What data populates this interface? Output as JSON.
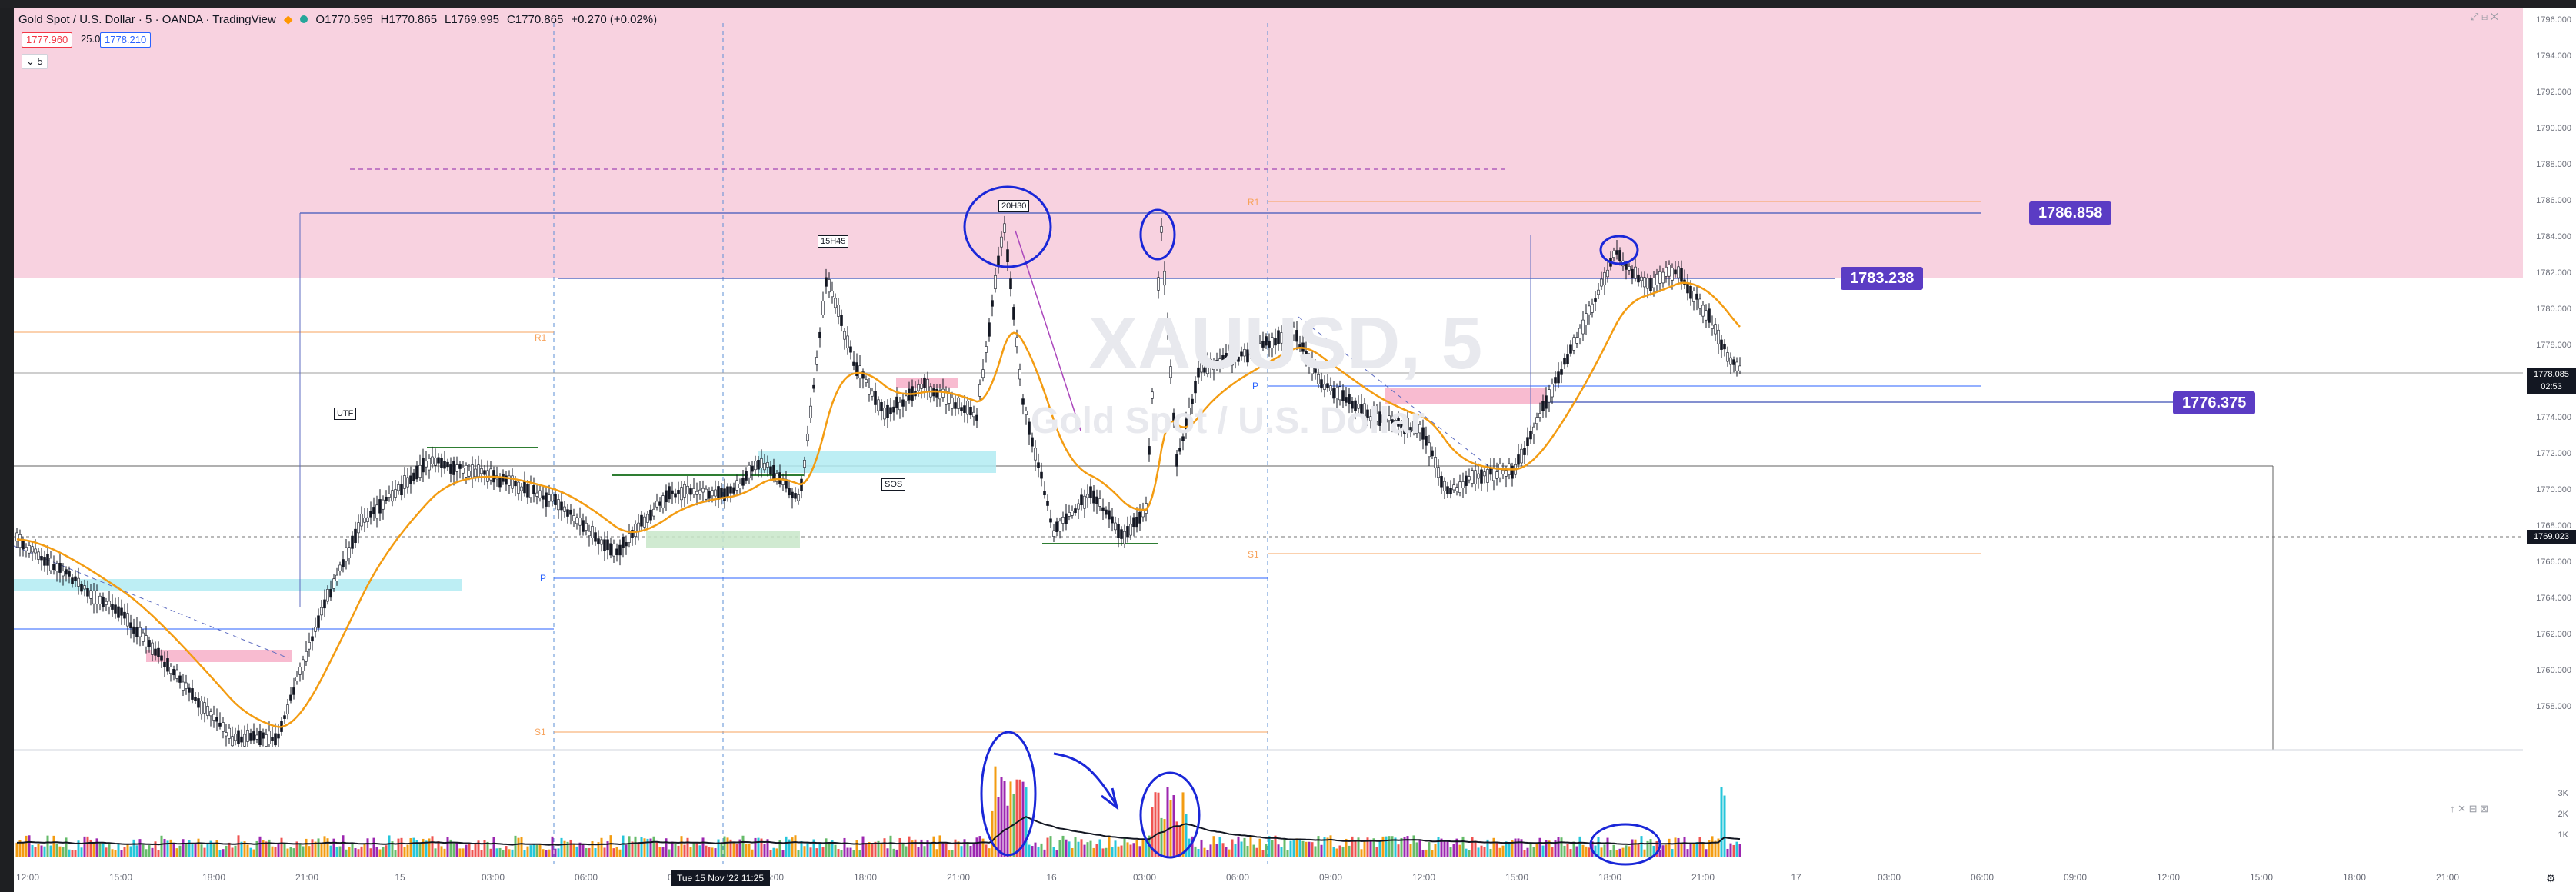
{
  "header": {
    "symbol": "Gold Spot / U.S. Dollar · 5 · OANDA · TradingView",
    "open": "O1770.595",
    "high": "H1770.865",
    "low": "L1769.995",
    "close": "C1770.865",
    "change": "+0.270 (+0.02%)"
  },
  "quote": {
    "bid": "1777.960",
    "spread": "25.0",
    "ask": "1778.210",
    "indicator_toggle": "5"
  },
  "watermark": {
    "ticker": "XAUUSD, 5",
    "name": "Gold Spot / U.S. Dollar"
  },
  "levels": {
    "upper": "1786.858",
    "middle": "1783.238",
    "lower": "1776.375"
  },
  "annotations": {
    "utf": "UTF",
    "sos": "SOS",
    "t15h45": "15H45",
    "t20h30": "20H30",
    "pivot_r1": "R1",
    "pivot_s1": "S1",
    "pivot_p": "P"
  },
  "price_axis": {
    "ticks": [
      "1796.000",
      "1794.000",
      "1792.000",
      "1790.000",
      "1788.000",
      "1786.000",
      "1784.000",
      "1782.000",
      "1780.000",
      "1778.000",
      "1776.000",
      "1774.000",
      "1772.000",
      "1770.000",
      "1768.000",
      "1766.000",
      "1764.000",
      "1762.000",
      "1760.000",
      "1758.000"
    ],
    "current_price": "1778.085",
    "countdown": "02:53",
    "crosshair_price": "1769.023"
  },
  "volume_axis": {
    "ticks": [
      "3K",
      "2K",
      "1K"
    ]
  },
  "time_axis": {
    "ticks": [
      "12:00",
      "15:00",
      "18:00",
      "21:00",
      "15",
      "03:00",
      "06:00",
      "09:00",
      "15:00",
      "18:00",
      "21:00",
      "16",
      "03:00",
      "06:00",
      "09:00",
      "12:00",
      "15:00",
      "18:00",
      "21:00",
      "17",
      "03:00",
      "06:00",
      "09:00",
      "12:00",
      "15:00",
      "18:00",
      "21:00"
    ],
    "crosshair_date": "Tue 15 Nov '22    11:25"
  },
  "colors": {
    "supply_zone": "#f8bbd0",
    "demand_zone": "#b2ebf2",
    "up_candle": "#131722",
    "ema": "#f39c12",
    "level_label": "#5b3cc4",
    "drawing_ink": "#1a27d8"
  },
  "icons": [
    "settings-gear-icon",
    "panel-maximize-icon",
    "panel-close-icon"
  ]
}
